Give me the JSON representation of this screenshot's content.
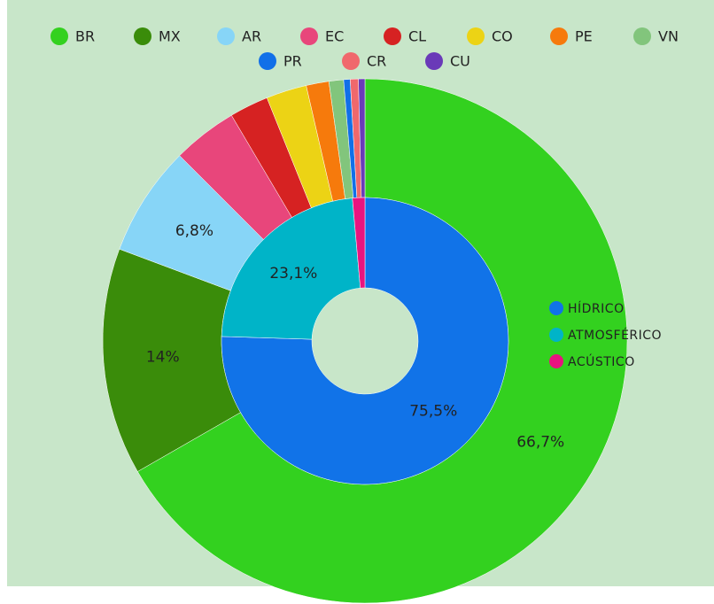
{
  "chart_data": [
    {
      "type": "pie",
      "categories": [
        "BR",
        "MX",
        "AR",
        "EC",
        "CL",
        "CO",
        "PE",
        "VN",
        "PR",
        "CR",
        "CU"
      ],
      "values": [
        66.7,
        14,
        6.8,
        4,
        2.4,
        2.5,
        1.4,
        0.9,
        0.4,
        0.5,
        0.4
      ],
      "value_labels": [
        "66,7%",
        "14%",
        "6,8%",
        null,
        null,
        null,
        null,
        null,
        null,
        null,
        null
      ],
      "colors": [
        "#33d11f",
        "#3a8c0a",
        "#87d5f7",
        "#e8467b",
        "#d62222",
        "#ecd315",
        "#f67a0c",
        "#82c57c",
        "#1170e8",
        "#f0686c",
        "#6a3ab8"
      ],
      "legend": "top"
    },
    {
      "type": "pie",
      "categories": [
        "HÍDRICO",
        "ATMOSFÉRICO",
        "ACÚSTICO"
      ],
      "values": [
        75.5,
        23.1,
        1.4
      ],
      "value_labels": [
        "75,5%",
        "23,1%",
        null
      ],
      "colors": [
        "#1173e8",
        "#00b4c8",
        "#e8147f"
      ],
      "legend": "right"
    }
  ]
}
